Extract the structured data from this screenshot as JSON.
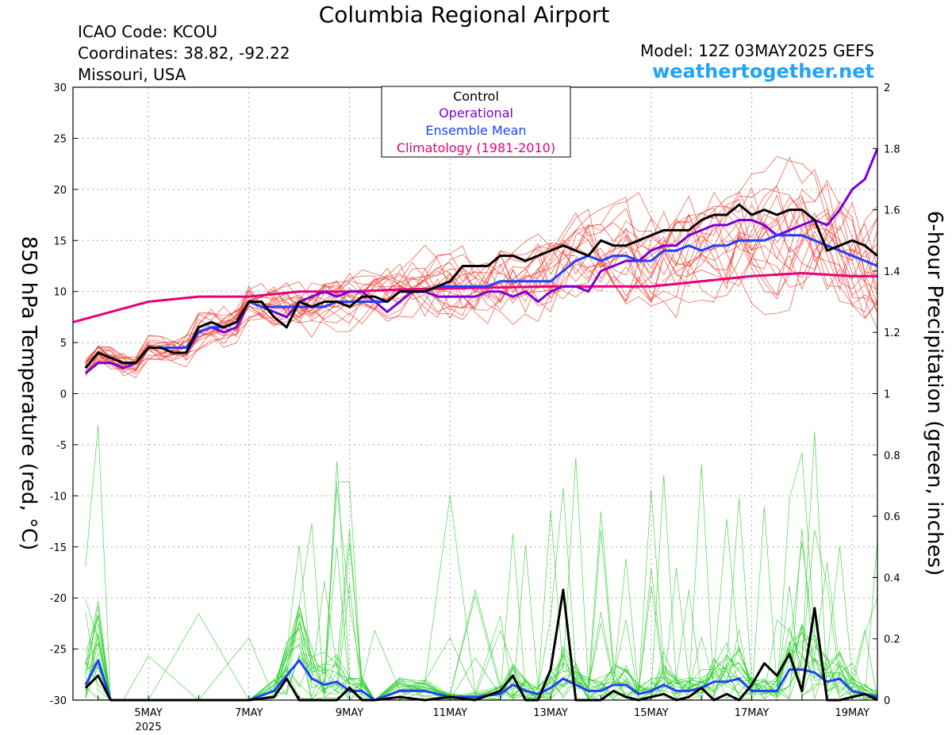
{
  "header": {
    "title": "Columbia Regional Airport",
    "icao": "ICAO Code: KCOU",
    "coordinates": "Coordinates: 38.82, -92.22",
    "region": "Missouri, USA",
    "model": "Model: 12Z 03MAY2025 GEFS",
    "site": "weathertogether.net"
  },
  "colors": {
    "control": "#000000",
    "operational": "#7a00d8",
    "ensemble_mean": "#2040ff",
    "climatology": "#e8007a",
    "members_temperature": "#ee3322",
    "members_precip": "#22cc22"
  },
  "chart_data": {
    "type": "line",
    "xlabel_ticks": [
      "5MAY",
      "7MAY",
      "9MAY",
      "11MAY",
      "13MAY",
      "15MAY",
      "17MAY",
      "19MAY"
    ],
    "xlabel_year": "2025",
    "x_start_day": 3.5,
    "x_end_day": 19.5,
    "y_left": {
      "label": "850 hPa Temperature (red, °C)",
      "range": [
        -30,
        30
      ],
      "ticks": [
        "30",
        "25",
        "20",
        "15",
        "10",
        "5",
        "0",
        "-5",
        "-10",
        "-15",
        "-20",
        "-25",
        "-30"
      ]
    },
    "y_right": {
      "label": "6-hour Precipitation (green, inches)",
      "range": [
        0,
        2
      ],
      "ticks": [
        "2",
        "1.8",
        "1.6",
        "1.4",
        "1.2",
        "1",
        "0.8",
        "0.6",
        "0.4",
        "0.2",
        "0"
      ]
    },
    "grid": true,
    "legend": {
      "placement": "top-center",
      "entries": [
        "Control",
        "Operational",
        "Ensemble Mean",
        "Climatology (1981-2010)"
      ]
    },
    "series": [
      {
        "name": "Control",
        "axis": "left",
        "x": [
          3.75,
          4,
          4.25,
          4.5,
          4.75,
          5,
          5.25,
          5.5,
          5.75,
          6,
          6.25,
          6.5,
          6.75,
          7,
          7.25,
          7.5,
          7.75,
          8,
          8.25,
          8.5,
          8.75,
          9,
          9.25,
          9.5,
          9.75,
          10,
          10.25,
          10.5,
          10.75,
          11,
          11.25,
          11.5,
          11.75,
          12,
          12.25,
          12.5,
          12.75,
          13,
          13.25,
          13.5,
          13.75,
          14,
          14.25,
          14.5,
          14.75,
          15,
          15.25,
          15.5,
          15.75,
          16,
          16.25,
          16.5,
          16.75,
          17,
          17.25,
          17.5,
          17.75,
          18,
          18.25,
          18.5,
          18.75,
          19,
          19.25,
          19.5
        ],
        "values": [
          2.5,
          4,
          3.5,
          3,
          3,
          4.5,
          4.5,
          4,
          4,
          6.5,
          7,
          6.5,
          7,
          9,
          9,
          7.5,
          6.5,
          9,
          8.5,
          9,
          9,
          8.5,
          9.5,
          9.5,
          9,
          10,
          10,
          10,
          10.5,
          11,
          12.5,
          12.5,
          12.5,
          13.5,
          13.5,
          13,
          13.5,
          14,
          14.5,
          14,
          13.5,
          15,
          14.5,
          14.5,
          15,
          15.5,
          16,
          16,
          16,
          17,
          17.5,
          17.5,
          18.5,
          17.5,
          18,
          17.5,
          18,
          18,
          17,
          14,
          14.5,
          15,
          14.5,
          13.5
        ]
      },
      {
        "name": "Operational",
        "axis": "left",
        "x": [
          3.75,
          4,
          4.25,
          4.5,
          4.75,
          5,
          5.25,
          5.5,
          5.75,
          6,
          6.25,
          6.5,
          6.75,
          7,
          7.25,
          7.5,
          7.75,
          8,
          8.25,
          8.5,
          8.75,
          9,
          9.25,
          9.5,
          9.75,
          10,
          10.25,
          10.5,
          10.75,
          11,
          11.25,
          11.5,
          11.75,
          12,
          12.25,
          12.5,
          12.75,
          13,
          13.25,
          13.5,
          13.75,
          14,
          14.25,
          14.5,
          14.75,
          15,
          15.25,
          15.5,
          15.75,
          16,
          16.25,
          16.5,
          16.75,
          17,
          17.25,
          17.5,
          17.75,
          18,
          18.25,
          18.5,
          18.75,
          19,
          19.25,
          19.5
        ],
        "values": [
          2,
          3,
          3,
          2.5,
          3,
          4.5,
          4.5,
          4,
          4,
          6,
          6.5,
          6,
          6.5,
          9,
          8.5,
          8,
          7.5,
          9,
          9.5,
          10,
          9.5,
          10,
          10,
          9,
          8,
          9,
          10,
          10,
          9.5,
          9.5,
          9.5,
          9.5,
          10,
          10,
          9.5,
          10,
          9,
          10,
          10.5,
          10.5,
          10,
          12,
          12.5,
          13,
          13,
          14,
          14.5,
          14.5,
          15.5,
          16,
          16.5,
          16.5,
          17,
          17,
          16.5,
          15.5,
          16,
          16.5,
          17,
          16.5,
          18,
          20,
          21,
          24
        ]
      },
      {
        "name": "Ensemble Mean",
        "axis": "left",
        "x": [
          3.75,
          4,
          4.25,
          4.5,
          4.75,
          5,
          5.25,
          5.5,
          5.75,
          6,
          6.25,
          6.5,
          6.75,
          7,
          7.25,
          7.5,
          7.75,
          8,
          8.25,
          8.5,
          8.75,
          9,
          9.25,
          9.5,
          9.75,
          10,
          10.25,
          10.5,
          10.75,
          11,
          11.25,
          11.5,
          11.75,
          12,
          12.25,
          12.5,
          12.75,
          13,
          13.25,
          13.5,
          13.75,
          14,
          14.25,
          14.5,
          14.75,
          15,
          15.25,
          15.5,
          15.75,
          16,
          16.25,
          16.5,
          16.75,
          17,
          17.25,
          17.5,
          17.75,
          18,
          18.25,
          18.5,
          18.75,
          19,
          19.25,
          19.5
        ],
        "values": [
          2.5,
          4,
          3.5,
          3,
          3,
          4.5,
          4.5,
          4.5,
          4.5,
          6,
          6.5,
          6.5,
          7,
          9,
          8.5,
          8.5,
          8.5,
          8.5,
          8.5,
          8.5,
          9,
          9,
          9,
          9,
          9,
          10,
          10,
          10,
          10.5,
          10.5,
          10.5,
          10.5,
          10.5,
          11,
          11,
          11,
          11,
          11,
          12,
          13,
          13.5,
          13,
          13.5,
          13.5,
          13,
          13,
          14,
          14,
          14.5,
          14,
          14.5,
          14.5,
          15,
          15,
          15,
          15.5,
          15.5,
          15.5,
          15,
          14.5,
          14,
          13.5,
          13,
          12.5
        ]
      },
      {
        "name": "Climatology (1981-2010)",
        "axis": "left",
        "x": [
          3.5,
          5,
          6,
          7,
          8,
          9,
          10,
          11,
          12,
          13,
          14,
          15,
          16,
          17,
          18,
          19,
          19.5
        ],
        "values": [
          7,
          9,
          9.5,
          9.5,
          10,
          10,
          10.2,
          10.3,
          10.4,
          10.5,
          10.5,
          10.5,
          11,
          11.5,
          11.8,
          11.5,
          11.5
        ]
      },
      {
        "name": "Control",
        "axis": "right",
        "x": [
          3.75,
          4,
          4.25,
          4.5,
          5,
          6,
          7,
          7.5,
          7.75,
          8,
          8.25,
          8.5,
          8.75,
          9,
          9.25,
          9.5,
          10,
          10.5,
          11,
          11.5,
          12,
          12.25,
          12.5,
          12.75,
          13,
          13.25,
          13.5,
          13.75,
          14,
          14.25,
          14.5,
          14.75,
          15,
          15.25,
          15.5,
          15.75,
          16,
          16.25,
          16.5,
          16.75,
          17,
          17.25,
          17.5,
          17.75,
          18,
          18.25,
          18.5,
          18.75,
          19,
          19.25,
          19.5
        ],
        "values": [
          0.04,
          0.08,
          0,
          0,
          0,
          0,
          0,
          0.01,
          0.07,
          0,
          0,
          0,
          0,
          0.04,
          0,
          0,
          0.01,
          0,
          0.01,
          0,
          0.03,
          0.08,
          0,
          0,
          0.1,
          0.36,
          0,
          0,
          0,
          0.03,
          0.01,
          0,
          0.01,
          0.02,
          0,
          0.01,
          0.04,
          0,
          0.02,
          0,
          0.05,
          0.12,
          0.08,
          0.15,
          0.03,
          0.3,
          0,
          0,
          0.01,
          0.02,
          0
        ]
      },
      {
        "name": "Ensemble Mean",
        "axis": "right",
        "x": [
          3.75,
          4,
          4.25,
          4.5,
          5,
          6,
          7,
          7.5,
          7.75,
          8,
          8.25,
          8.5,
          8.75,
          9,
          9.25,
          9.5,
          10,
          10.5,
          11,
          11.5,
          12,
          12.25,
          12.5,
          12.75,
          13,
          13.25,
          13.5,
          13.75,
          14,
          14.25,
          14.5,
          14.75,
          15,
          15.25,
          15.5,
          15.75,
          16,
          16.25,
          16.5,
          16.75,
          17,
          17.25,
          17.5,
          17.75,
          18,
          18.25,
          18.5,
          18.75,
          19,
          19.25,
          19.5
        ],
        "values": [
          0.05,
          0.13,
          0,
          0,
          0,
          0,
          0,
          0.03,
          0.08,
          0.13,
          0.07,
          0.05,
          0.06,
          0.03,
          0.03,
          0,
          0.03,
          0.03,
          0.01,
          0.01,
          0.02,
          0.05,
          0.03,
          0.02,
          0.04,
          0.07,
          0.05,
          0.03,
          0.03,
          0.05,
          0.05,
          0.02,
          0.03,
          0.05,
          0.03,
          0.03,
          0.04,
          0.06,
          0.06,
          0.07,
          0.03,
          0.03,
          0.03,
          0.1,
          0.1,
          0.09,
          0.06,
          0.07,
          0.03,
          0.02,
          0.01
        ]
      }
    ]
  }
}
